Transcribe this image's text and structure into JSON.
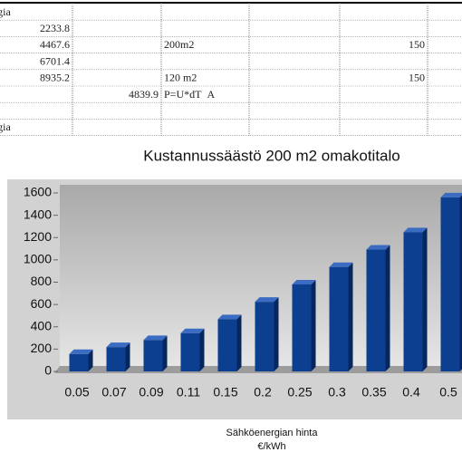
{
  "table": {
    "rows": [
      [
        "ergia",
        null,
        null,
        null,
        null,
        null
      ],
      [
        "2233.8",
        null,
        null,
        null,
        null,
        null
      ],
      [
        "4467.6",
        null,
        "200m2",
        null,
        "150",
        null
      ],
      [
        "6701.4",
        null,
        null,
        null,
        null,
        null
      ],
      [
        "8935.2",
        null,
        "120 m2",
        null,
        "150",
        null
      ],
      [
        null,
        "4839.9",
        "P=U*dT  A",
        null,
        null,
        null
      ],
      [
        null,
        null,
        null,
        null,
        null,
        null
      ],
      [
        "ergia",
        null,
        null,
        null,
        null,
        null
      ]
    ]
  },
  "chart_data": {
    "type": "bar3d",
    "title": "Kustannussäästö 200 m2 omakotitalo",
    "x_label": [
      "Sähköenergian hinta",
      "€/kWh"
    ],
    "categories": [
      "0.05",
      "0.07",
      "0.09",
      "0.11",
      "0.15",
      "0.2",
      "0.25",
      "0.3",
      "0.35",
      "0.4",
      "0.5"
    ],
    "values": [
      156,
      218,
      281,
      343,
      468,
      624,
      780,
      936,
      1092,
      1248,
      1560
    ],
    "color": "#0d3f90",
    "ylim": [
      0,
      1600
    ],
    "yticks": [
      0,
      200,
      400,
      600,
      800,
      1000,
      1200,
      1400,
      1600
    ],
    "grid": false
  }
}
